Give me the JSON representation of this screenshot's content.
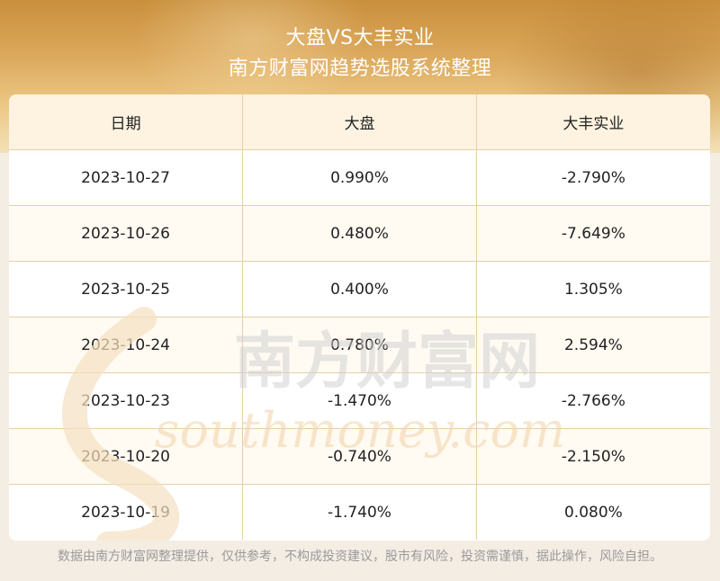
{
  "header": {
    "title": "大盘VS大丰实业",
    "subtitle": "南方财富网趋势选股系统整理"
  },
  "watermark": {
    "cn": "南方财富网",
    "en": "southmoney.com"
  },
  "chart_data": {
    "type": "table",
    "columns": [
      "日期",
      "大盘",
      "大丰实业"
    ],
    "rows": [
      [
        "2023-10-27",
        "0.990%",
        "-2.790%"
      ],
      [
        "2023-10-26",
        "0.480%",
        "-7.649%"
      ],
      [
        "2023-10-25",
        "0.400%",
        "1.305%"
      ],
      [
        "2023-10-24",
        "0.780%",
        "2.594%"
      ],
      [
        "2023-10-23",
        "-1.470%",
        "-2.766%"
      ],
      [
        "2023-10-20",
        "-0.740%",
        "-2.150%"
      ],
      [
        "2023-10-19",
        "-1.740%",
        "0.080%"
      ]
    ]
  },
  "footer": {
    "disclaimer": "数据由南方财富网整理提供，仅供参考，不构成投资建议，股市有风险，投资需谨慎，据此操作，风险自担。"
  }
}
